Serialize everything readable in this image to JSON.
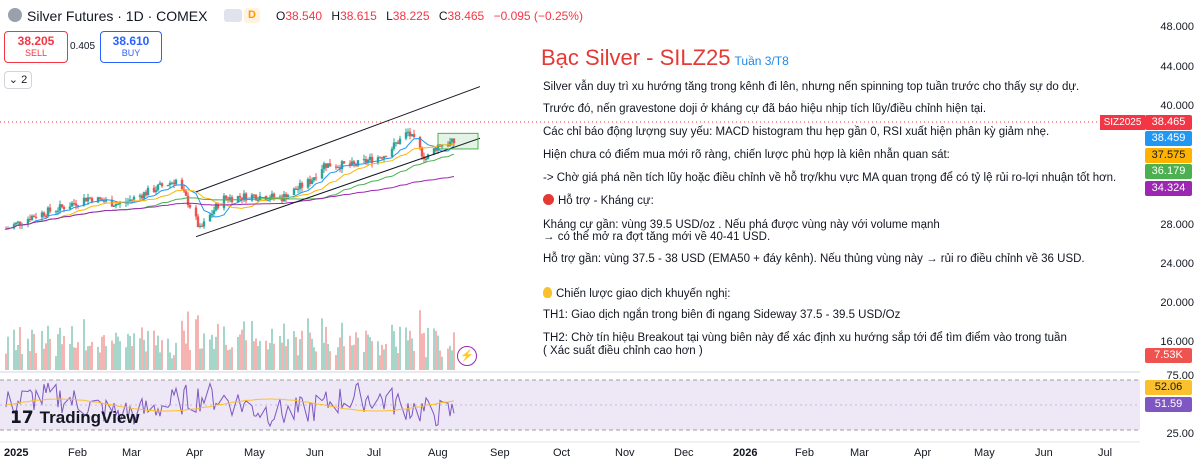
{
  "header": {
    "symbol": "Silver Futures · 1D · COMEX",
    "interval_badge": "D",
    "ohlc": [
      {
        "k": "O",
        "v": "38.540"
      },
      {
        "k": "H",
        "v": "38.615"
      },
      {
        "k": "L",
        "v": "38.225"
      },
      {
        "k": "C",
        "v": "38.465"
      }
    ],
    "change": "−0.095 (−0.25%)"
  },
  "trade": {
    "sell_price": "38.205",
    "sell_label": "SELL",
    "spread": "0.405",
    "buy_price": "38.610",
    "buy_label": "BUY",
    "collapse": "2"
  },
  "annotation": {
    "title": "Bạc Silver - SILZ25",
    "week": "Tuần 3/T8",
    "l1": "Silver vẫn duy trì xu hướng tăng trong kênh đi lên, nhưng nến spinning top tuần trước cho thấy sự do dự.",
    "l2": "Trước đó, nến gravestone doji ở kháng cự đã báo hiệu nhịp tích lũy/điều chỉnh hiện tại.",
    "l3": "Các chỉ báo động lượng suy yếu: MACD histogram thu hẹp gần 0, RSI xuất hiện phân kỳ giảm nhẹ.",
    "l4": "Hiện chưa có điểm mua mới rõ ràng, chiến lược phù hợp là kiên nhẫn quan sát:",
    "l5": "-> Chờ giá phá nền tích lũy hoặc điều chỉnh về hỗ trợ/khu vực MA quan trọng để có tỷ lệ rủi ro-lợi nhuận tốt hơn.",
    "sr_title": "Hỗ trợ - Kháng cự:",
    "sr1a": "Kháng cự gần: vùng 39.5 USD/oz . Nếu phá được vùng này với volume mạnh",
    "sr1b": "→ có thể mở ra đợt tăng mới về 40-41 USD.",
    "sr2": "Hỗ trợ gần: vùng 37.5 - 38 USD (EMA50 + đáy kênh). Nếu thủng vùng này → rủi ro điều chỉnh về 36 USD.",
    "st_title": "Chiến lược giao dịch khuyến nghị:",
    "th1": "TH1: Giao dịch ngắn trong biên đi ngang Sideway 37.5 - 39.5 USD/Oz",
    "th2a": "TH2: Chờ tín hiệu Breakout tại vùng biên này để xác định xu hướng sắp tới để tìm điểm vào trong tuần",
    "th2b": "( Xác suất điều chỉnh cao hơn )"
  },
  "axis": {
    "price_ticks": [
      "48.000",
      "44.000",
      "40.000",
      "28.000",
      "24.000",
      "20.000",
      "16.000"
    ],
    "rsi_ticks": [
      "75.00",
      "25.00"
    ],
    "months": [
      "2025",
      "Feb",
      "Mar",
      "Apr",
      "May",
      "Jun",
      "Jul",
      "Aug",
      "Sep",
      "Oct",
      "Nov",
      "Dec",
      "2026",
      "Feb",
      "Mar",
      "Apr",
      "May",
      "Jun",
      "Jul"
    ]
  },
  "tags": {
    "symbol_box": "SIZ2025",
    "last": "38.465",
    "ma1": "38.459",
    "ma2": "37.575",
    "ma3": "36.179",
    "ma4": "34.324",
    "volume": "7.53K",
    "rsi1": "52.06",
    "rsi2": "51.59"
  },
  "logo": "TradingView",
  "colors": {
    "up": "#26a69a",
    "down": "#ef5350",
    "rsi": "#7e57c2",
    "rsi_ma": "#fbc02d",
    "ma1": "#2196f3",
    "ma2": "#ffb300",
    "ma3": "#4caf50",
    "ma4": "#9c27b0",
    "red_text": "#e53935"
  },
  "chart_data": {
    "type": "candlestick",
    "x_range": [
      "2025-01-01",
      "2026-07-31"
    ],
    "ylim": [
      16,
      48
    ],
    "price_path": [
      {
        "date": "2025-01-02",
        "close": 29.6
      },
      {
        "date": "2025-01-15",
        "close": 30.9
      },
      {
        "date": "2025-01-30",
        "close": 31.8
      },
      {
        "date": "2025-02-12",
        "close": 32.8
      },
      {
        "date": "2025-02-28",
        "close": 32.1
      },
      {
        "date": "2025-03-15",
        "close": 33.5
      },
      {
        "date": "2025-03-28",
        "close": 34.6
      },
      {
        "date": "2025-04-04",
        "close": 32.0
      },
      {
        "date": "2025-04-09",
        "close": 29.5
      },
      {
        "date": "2025-04-20",
        "close": 32.7
      },
      {
        "date": "2025-05-05",
        "close": 33.0
      },
      {
        "date": "2025-05-20",
        "close": 32.8
      },
      {
        "date": "2025-06-03",
        "close": 34.5
      },
      {
        "date": "2025-06-10",
        "close": 36.2
      },
      {
        "date": "2025-06-25",
        "close": 36.1
      },
      {
        "date": "2025-07-10",
        "close": 37.2
      },
      {
        "date": "2025-07-22",
        "close": 39.5
      },
      {
        "date": "2025-07-31",
        "close": 36.8
      },
      {
        "date": "2025-08-06",
        "close": 38.2
      },
      {
        "date": "2025-08-14",
        "close": 38.465
      }
    ],
    "ma_last": [
      38.459,
      37.575,
      36.179,
      34.324
    ],
    "volume_last": "7.53K",
    "rsi_range": [
      25,
      75
    ],
    "rsi_last": [
      52.06,
      51.59
    ]
  }
}
